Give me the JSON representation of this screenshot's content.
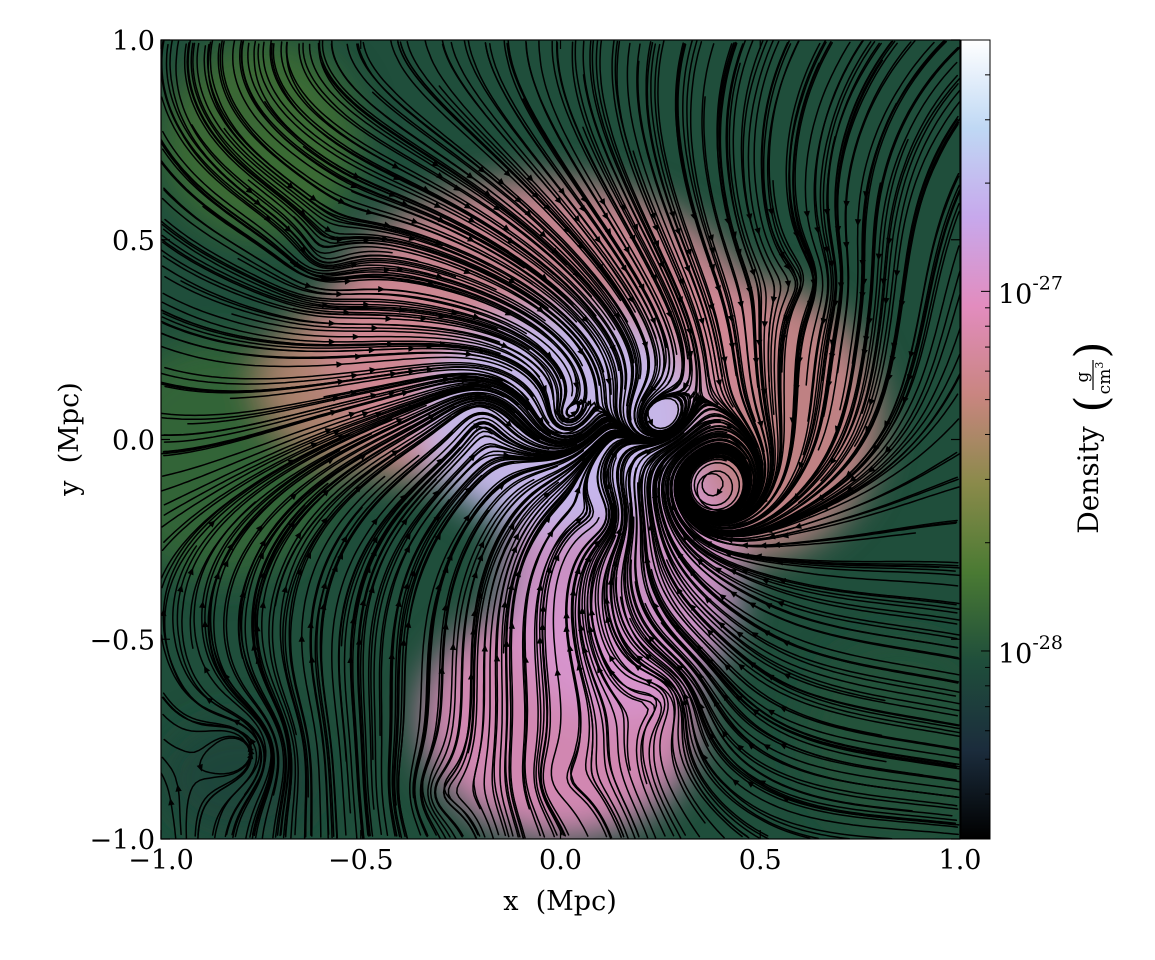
{
  "chart_data": {
    "type": "heatmap",
    "subtype": "density-slice-with-velocity-streamlines",
    "xlabel": "x  (Mpc)",
    "ylabel": "y  (Mpc)",
    "xlim": [
      -1.0,
      1.0
    ],
    "ylim": [
      -1.0,
      1.0
    ],
    "x_ticks": [
      -1.0,
      -0.5,
      0.0,
      0.5,
      1.0
    ],
    "y_ticks": [
      -1.0,
      -0.5,
      0.0,
      0.5,
      1.0
    ],
    "x_tick_labels": [
      "−1.0",
      "−0.5",
      "0.0",
      "0.5",
      "1.0"
    ],
    "y_tick_labels": [
      "−1.0",
      "−0.5",
      "0.0",
      "0.5",
      "1.0"
    ],
    "grid": false,
    "colormap": "cubehelix",
    "colorbar": {
      "position": "right",
      "scale": "log",
      "label": "Density",
      "unit_numerator": "g",
      "unit_denominator": "cm",
      "unit_exponent": "3",
      "range": [
        3e-29,
        5e-27
      ],
      "ticks": [
        1e-28,
        1e-27
      ],
      "tick_labels": [
        {
          "base": "10",
          "exp": "-28"
        },
        {
          "base": "10",
          "exp": "-27"
        }
      ],
      "colors": [
        "#000000",
        "#1b2c3c",
        "#1f4e3b",
        "#4a7a33",
        "#8a8a4a",
        "#c98580",
        "#e28cbe",
        "#c7a8ec",
        "#bfd8f4",
        "#ffffff"
      ]
    },
    "density_blobs": [
      {
        "x": 0.0,
        "y": 0.05,
        "rx": 0.35,
        "ry": 0.28,
        "log_density": -26.7
      },
      {
        "x": 0.15,
        "y": -0.35,
        "rx": 0.3,
        "ry": 0.35,
        "log_density": -26.95
      },
      {
        "x": 0.0,
        "y": -0.7,
        "rx": 0.35,
        "ry": 0.3,
        "log_density": -27.05
      },
      {
        "x": -0.05,
        "y": 0.25,
        "rx": 0.55,
        "ry": 0.4,
        "log_density": -27.2
      },
      {
        "x": 0.45,
        "y": 0.05,
        "rx": 0.35,
        "ry": 0.35,
        "log_density": -27.25
      },
      {
        "x": -0.35,
        "y": 0.15,
        "rx": 0.4,
        "ry": 0.25,
        "log_density": -27.35
      },
      {
        "x": -0.75,
        "y": 0.75,
        "rx": 0.25,
        "ry": 0.25,
        "log_density": -27.85
      },
      {
        "x": -0.85,
        "y": -0.05,
        "rx": 0.3,
        "ry": 0.3,
        "log_density": -27.9
      },
      {
        "x": 0.85,
        "y": -0.75,
        "rx": 0.25,
        "ry": 0.25,
        "log_density": -28.0
      },
      {
        "x": -0.85,
        "y": 0.85,
        "rx": 0.15,
        "ry": 0.1,
        "log_density": -28.3
      },
      {
        "x": -0.8,
        "y": -0.85,
        "rx": 0.2,
        "ry": 0.15,
        "log_density": -28.1
      }
    ],
    "streamline_vortices": [
      {
        "x": 0.0,
        "y": 0.05,
        "strength": 0.8
      },
      {
        "x": 0.38,
        "y": -0.12,
        "strength": -1.0
      },
      {
        "x": 0.25,
        "y": 0.05,
        "strength": 0.7
      },
      {
        "x": -0.2,
        "y": 0.05,
        "strength": -0.7
      },
      {
        "x": 0.1,
        "y": -0.2,
        "strength": 0.6
      },
      {
        "x": -0.8,
        "y": -0.78,
        "strength": 1.2
      },
      {
        "x": -0.3,
        "y": -0.88,
        "strength": -0.8
      },
      {
        "x": 0.25,
        "y": -0.65,
        "strength": 0.7
      },
      {
        "x": 0.0,
        "y": -0.85,
        "strength": -0.5
      },
      {
        "x": -0.6,
        "y": 0.45,
        "strength": 0.5
      },
      {
        "x": 0.6,
        "y": 0.4,
        "strength": -0.5
      }
    ],
    "streamline_inflow": {
      "x": 0.0,
      "y": 0.0,
      "strength": 0.35
    }
  }
}
